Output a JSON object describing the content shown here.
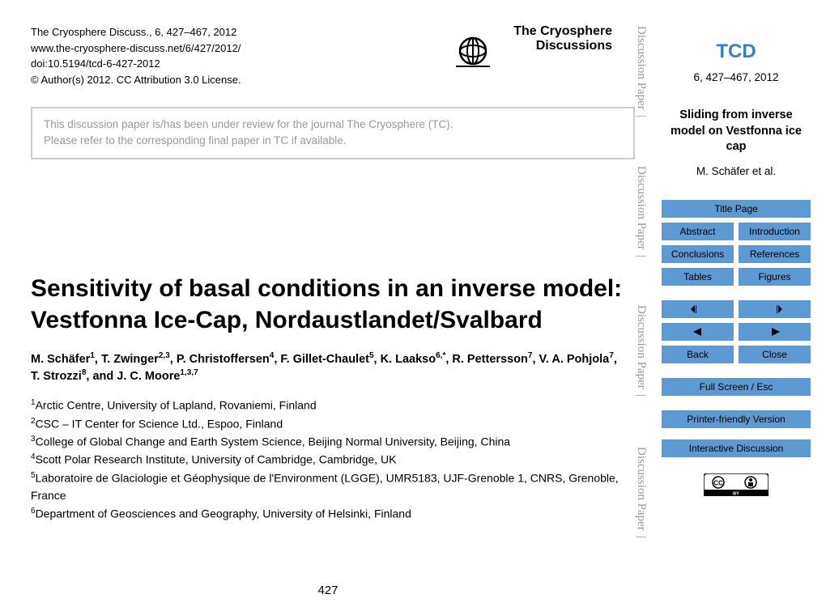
{
  "header": {
    "citation": "The Cryosphere Discuss., 6, 427–467, 2012",
    "url": "www.the-cryosphere-discuss.net/6/427/2012/",
    "doi": "doi:10.5194/tcd-6-427-2012",
    "copyright": "© Author(s) 2012. CC Attribution 3.0 License.",
    "journal_line1": "The Cryosphere",
    "journal_line2": "Discussions"
  },
  "review_notice": {
    "line1": "This discussion paper is/has been under review for the journal The Cryosphere (TC).",
    "line2": "Please refer to the corresponding final paper in TC if available."
  },
  "title": "Sensitivity of basal conditions in an inverse model: Vestfonna Ice-Cap, Nordaustlandet/Svalbard",
  "authors_html": "M. Schäfer<sup>1</sup>, T. Zwinger<sup>2,3</sup>, P. Christoffersen<sup>4</sup>, F. Gillet-Chaulet<sup>5</sup>, K. Laakso<sup>6,*</sup>, R. Pettersson<sup>7</sup>, V. A. Pohjola<sup>7</sup>, T. Strozzi<sup>8</sup>, and J. C. Moore<sup>1,3,7</sup>",
  "affiliations": [
    "<sup>1</sup>Arctic Centre, University of Lapland, Rovaniemi, Finland",
    "<sup>2</sup>CSC – IT Center for Science Ltd., Espoo, Finland",
    "<sup>3</sup>College of Global Change and Earth System Science, Beijing Normal University, Beijing, China",
    "<sup>4</sup>Scott Polar Research Institute, University of Cambridge, Cambridge, UK",
    "<sup>5</sup>Laboratoire de Glaciologie et Géophysique de l'Environment (LGGE), UMR5183, UJF-Grenoble 1, CNRS, Grenoble, France",
    "<sup>6</sup>Department of Geosciences and Geography, University of Helsinki, Finland"
  ],
  "page_number": "427",
  "side_label": "Discussion Paper",
  "side_bar_sep": "|",
  "sidebar": {
    "acronym": "TCD",
    "issue": "6, 427–467, 2012",
    "short_title": "Sliding from inverse model on Vestfonna ice cap",
    "authors_short": "M. Schäfer et al.",
    "buttons": {
      "title_page": "Title Page",
      "abstract": "Abstract",
      "introduction": "Introduction",
      "conclusions": "Conclusions",
      "references": "References",
      "tables": "Tables",
      "figures": "Figures",
      "first": "◂◂",
      "last": "▸▸",
      "prev": "◀",
      "next": "▶",
      "back": "Back",
      "close": "Close",
      "fullscreen": "Full Screen / Esc",
      "printer": "Printer-friendly Version",
      "interactive": "Interactive Discussion"
    }
  },
  "colors": {
    "sidebar_accent": "#3b7fc4",
    "button_bg": "#5d9ad4",
    "muted_text": "#999999"
  }
}
